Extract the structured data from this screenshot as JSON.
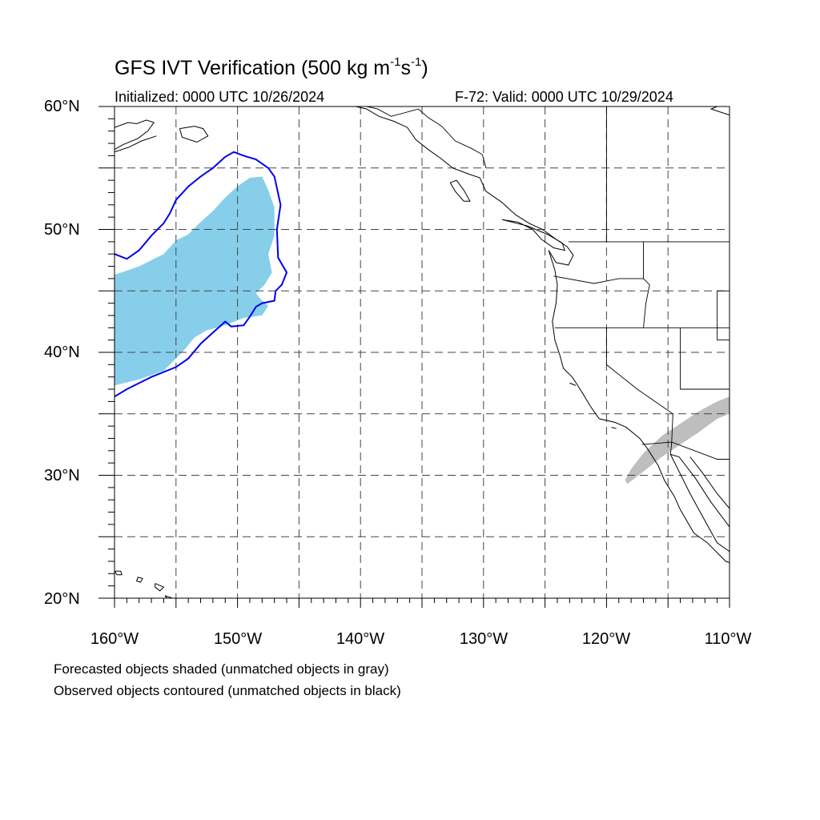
{
  "title": {
    "main": "GFS IVT Verification (500 kg m",
    "sup1": "-1",
    "mid": "s",
    "sup2": "-1",
    "close": ")"
  },
  "initialized": "Initialized: 0000 UTC 10/26/2024",
  "valid": "F-72: Valid: 0000 UTC 10/29/2024",
  "lat_labels": [
    "60°N",
    "50°N",
    "40°N",
    "30°N",
    "20°N"
  ],
  "lon_labels": [
    "160°W",
    "150°W",
    "140°W",
    "130°W",
    "120°W",
    "110°W"
  ],
  "notes": {
    "line1": "Forecasted objects shaded (unmatched objects in gray)",
    "line2": "Observed objects contoured (unmatched objects in black)"
  },
  "map": {
    "lon_range": [
      -160,
      -110
    ],
    "lat_range": [
      20,
      60
    ],
    "grid_lons": [
      -155,
      -150,
      -145,
      -140,
      -135,
      -130,
      -125,
      -120,
      -115
    ],
    "grid_lats": [
      25,
      30,
      35,
      40,
      45,
      50,
      55
    ],
    "colors": {
      "forecast_matched": "#87ceeb",
      "forecast_unmatched": "#bebebe",
      "observed_matched": "#0000ee",
      "coast": "#000000",
      "grid": "#444444"
    },
    "forecast_matched_object": [
      [
        -160,
        46.3
      ],
      [
        -158,
        47
      ],
      [
        -156,
        48
      ],
      [
        -155,
        49.1
      ],
      [
        -154,
        49.6
      ],
      [
        -153,
        50.6
      ],
      [
        -152,
        51.5
      ],
      [
        -151,
        52.6
      ],
      [
        -150,
        53.5
      ],
      [
        -149,
        54.2
      ],
      [
        -148,
        54.3
      ],
      [
        -147.5,
        53.2
      ],
      [
        -147,
        51.8
      ],
      [
        -147,
        49.5
      ],
      [
        -147.5,
        48
      ],
      [
        -147.2,
        46.5
      ],
      [
        -147.8,
        45.5
      ],
      [
        -148.5,
        44.8
      ],
      [
        -148,
        44.2
      ],
      [
        -147.5,
        43.8
      ],
      [
        -148,
        43
      ],
      [
        -149.5,
        42.8
      ],
      [
        -151,
        42.2
      ],
      [
        -152.5,
        41.8
      ],
      [
        -153.5,
        41.2
      ],
      [
        -154.5,
        40
      ],
      [
        -156,
        38.5
      ],
      [
        -158,
        37.8
      ],
      [
        -160,
        37.3
      ]
    ],
    "forecast_unmatched_object": [
      [
        -118.3,
        29.3
      ],
      [
        -117,
        30.3
      ],
      [
        -115.5,
        31.5
      ],
      [
        -114,
        32.5
      ],
      [
        -112.5,
        33.5
      ],
      [
        -111,
        34.6
      ],
      [
        -110,
        35
      ],
      [
        -110,
        36.4
      ],
      [
        -111,
        36
      ],
      [
        -112.5,
        35.2
      ],
      [
        -114,
        34.2
      ],
      [
        -115.5,
        33.2
      ],
      [
        -117,
        31.8
      ],
      [
        -118,
        30.5
      ],
      [
        -118.5,
        29.6
      ]
    ],
    "observed_matched_object": [
      [
        -160,
        48
      ],
      [
        -159,
        47.6
      ],
      [
        -158,
        48.3
      ],
      [
        -157,
        49.5
      ],
      [
        -156,
        50.5
      ],
      [
        -155.5,
        51.3
      ],
      [
        -155,
        52.4
      ],
      [
        -154,
        53.5
      ],
      [
        -153,
        54.3
      ],
      [
        -152,
        55
      ],
      [
        -151,
        55.9
      ],
      [
        -150.3,
        56.3
      ],
      [
        -149.5,
        56
      ],
      [
        -148.5,
        55.7
      ],
      [
        -147.5,
        55
      ],
      [
        -147,
        54.3
      ],
      [
        -146.5,
        52
      ],
      [
        -146.8,
        50
      ],
      [
        -146.7,
        47.7
      ],
      [
        -146,
        46.5
      ],
      [
        -146.4,
        45.5
      ],
      [
        -146.9,
        45
      ],
      [
        -147,
        44.2
      ],
      [
        -148,
        44
      ],
      [
        -148.5,
        43.7
      ],
      [
        -149,
        42.9
      ],
      [
        -149.5,
        42.2
      ],
      [
        -150.5,
        42.1
      ],
      [
        -151,
        42.5
      ],
      [
        -152,
        41.6
      ],
      [
        -153,
        40.7
      ],
      [
        -154,
        39.5
      ],
      [
        -155,
        38.8
      ],
      [
        -157,
        38
      ],
      [
        -158,
        37.5
      ],
      [
        -159,
        37
      ],
      [
        -160,
        36.4
      ]
    ],
    "coastlines": [
      [
        [
          -160,
          58.3
        ],
        [
          -158.9,
          58.7
        ],
        [
          -158.2,
          58.6
        ],
        [
          -157.4,
          58.9
        ],
        [
          -156.8,
          58.7
        ],
        [
          -157.3,
          58
        ],
        [
          -158.1,
          57.4
        ],
        [
          -159.3,
          56.9
        ],
        [
          -160,
          56.5
        ]
      ],
      [
        [
          -160,
          56.3
        ],
        [
          -158.8,
          56.7
        ],
        [
          -157.8,
          57.2
        ],
        [
          -156.6,
          57.6
        ]
      ],
      [
        [
          -154.7,
          58.2
        ],
        [
          -153.5,
          58.4
        ],
        [
          -152.8,
          58.2
        ],
        [
          -152.4,
          57.6
        ],
        [
          -153.3,
          57.1
        ],
        [
          -154.5,
          57.5
        ],
        [
          -154.7,
          58.2
        ]
      ],
      [
        [
          -140.4,
          60
        ],
        [
          -139.5,
          59.8
        ],
        [
          -138.5,
          59.2
        ],
        [
          -137.3,
          58.8
        ],
        [
          -136.2,
          58.3
        ],
        [
          -135.5,
          57.3
        ],
        [
          -134.5,
          56.5
        ],
        [
          -133.5,
          55.8
        ],
        [
          -132.5,
          55
        ],
        [
          -131.2,
          54.5
        ],
        [
          -130.3,
          54.2
        ],
        [
          -129.8,
          53.1
        ],
        [
          -128.5,
          52.2
        ],
        [
          -127.4,
          51.2
        ],
        [
          -126.3,
          50.5
        ],
        [
          -125.2,
          50
        ],
        [
          -124.1,
          49.2
        ],
        [
          -123.2,
          48.6
        ],
        [
          -122.7,
          47.9
        ],
        [
          -123.1,
          47.1
        ],
        [
          -124.1,
          47.3
        ],
        [
          -124.7,
          48.3
        ]
      ],
      [
        [
          -132.2,
          54
        ],
        [
          -131.6,
          53.2
        ],
        [
          -131.1,
          52.3
        ],
        [
          -131.6,
          52.3
        ],
        [
          -132.3,
          53.1
        ],
        [
          -132.7,
          53.8
        ],
        [
          -132.2,
          54
        ]
      ],
      [
        [
          -128.5,
          50.8
        ],
        [
          -127.2,
          50.6
        ],
        [
          -126,
          50
        ],
        [
          -125.3,
          49.2
        ],
        [
          -124.3,
          48.5
        ],
        [
          -123.4,
          48.3
        ],
        [
          -123.6,
          48.9
        ],
        [
          -124.8,
          49.6
        ],
        [
          -126.5,
          50.3
        ],
        [
          -128.1,
          50.7
        ],
        [
          -128.5,
          50.8
        ]
      ],
      [
        [
          -124.7,
          48.3
        ],
        [
          -124.2,
          46.7
        ],
        [
          -124,
          45.5
        ],
        [
          -124.1,
          44
        ],
        [
          -124.4,
          42.5
        ],
        [
          -124.2,
          41
        ],
        [
          -123.8,
          39.8
        ],
        [
          -123.5,
          38.7
        ],
        [
          -122.8,
          38
        ],
        [
          -122.4,
          37.4
        ],
        [
          -121.9,
          36.6
        ],
        [
          -121.3,
          35.6
        ],
        [
          -120.6,
          34.6
        ],
        [
          -119.3,
          34.3
        ],
        [
          -118.4,
          33.9
        ],
        [
          -117.3,
          33
        ],
        [
          -116.7,
          32.2
        ],
        [
          -115.8,
          30.8
        ],
        [
          -115.3,
          29.6
        ],
        [
          -114.5,
          28.3
        ],
        [
          -114,
          27.2
        ],
        [
          -112.9,
          25.3
        ],
        [
          -111.8,
          24.5
        ],
        [
          -110.3,
          23
        ],
        [
          -110,
          22.9
        ]
      ],
      [
        [
          -110,
          25.8
        ],
        [
          -111.5,
          27.8
        ],
        [
          -112.8,
          29.8
        ],
        [
          -114.1,
          31.5
        ],
        [
          -114.8,
          31.7
        ],
        [
          -114.2,
          30.5
        ],
        [
          -113.2,
          28.5
        ],
        [
          -112,
          26.3
        ],
        [
          -111,
          24.5
        ],
        [
          -110,
          23.8
        ]
      ],
      [
        [
          -110,
          27.3
        ],
        [
          -111,
          28.5
        ],
        [
          -112.2,
          30.2
        ],
        [
          -113.2,
          31.5
        ]
      ],
      [
        [
          -160,
          22.2
        ],
        [
          -159.5,
          22.2
        ],
        [
          -159.4,
          21.9
        ],
        [
          -159.8,
          21.9
        ],
        [
          -160,
          22.2
        ]
      ],
      [
        [
          -157.7,
          21.6
        ],
        [
          -157.9,
          21.3
        ],
        [
          -158.2,
          21.4
        ],
        [
          -158.1,
          21.7
        ],
        [
          -157.7,
          21.6
        ]
      ],
      [
        [
          -156.7,
          21.2
        ],
        [
          -156,
          20.9
        ],
        [
          -156.3,
          20.6
        ],
        [
          -156.7,
          20.9
        ],
        [
          -156.7,
          21.2
        ]
      ],
      [
        [
          -155.9,
          20.2
        ],
        [
          -155,
          19.9
        ],
        [
          -155.4,
          19.6
        ],
        [
          -155.9,
          20.2
        ]
      ],
      [
        [
          -110,
          59.3
        ],
        [
          -111.5,
          59.8
        ],
        [
          -111,
          60
        ]
      ],
      [
        [
          -123,
          37.5
        ],
        [
          -122.5,
          37.3
        ]
      ],
      [
        [
          -119.6,
          33.9
        ],
        [
          -119.2,
          33.8
        ]
      ]
    ],
    "borders": [
      [
        [
          -129.8,
          55
        ],
        [
          -130.1,
          56.1
        ],
        [
          -131,
          56.6
        ],
        [
          -132.3,
          57.2
        ],
        [
          -133.4,
          58.4
        ],
        [
          -134.5,
          59.1
        ],
        [
          -135.3,
          59.8
        ],
        [
          -136,
          59.6
        ],
        [
          -137.5,
          59.2
        ],
        [
          -138.6,
          59.8
        ],
        [
          -139.5,
          60
        ]
      ],
      [
        [
          -120,
          60
        ],
        [
          -120,
          49
        ]
      ],
      [
        [
          -123.1,
          49
        ],
        [
          -110,
          49
        ]
      ],
      [
        [
          -117,
          49
        ],
        [
          -117,
          46
        ],
        [
          -116.5,
          45.5
        ],
        [
          -116.8,
          44
        ],
        [
          -117,
          42
        ]
      ],
      [
        [
          -124.3,
          46.2
        ],
        [
          -121,
          45.6
        ],
        [
          -119,
          46
        ],
        [
          -117,
          46
        ]
      ],
      [
        [
          -124.2,
          42
        ],
        [
          -110,
          42
        ]
      ],
      [
        [
          -120,
          42
        ],
        [
          -120,
          39
        ],
        [
          -117.5,
          37
        ],
        [
          -114.6,
          35
        ],
        [
          -114.7,
          32.7
        ]
      ],
      [
        [
          -114,
          42
        ],
        [
          -114,
          37
        ],
        [
          -110,
          37
        ]
      ],
      [
        [
          -111,
          45
        ],
        [
          -110,
          45
        ]
      ],
      [
        [
          -111,
          45
        ],
        [
          -111,
          41
        ],
        [
          -110,
          41
        ]
      ],
      [
        [
          -117.1,
          32.5
        ],
        [
          -114.7,
          32.7
        ],
        [
          -111,
          31.3
        ],
        [
          -110,
          31.3
        ]
      ],
      [
        [
          -114.8,
          31.7
        ],
        [
          -114.7,
          32.7
        ]
      ]
    ]
  }
}
